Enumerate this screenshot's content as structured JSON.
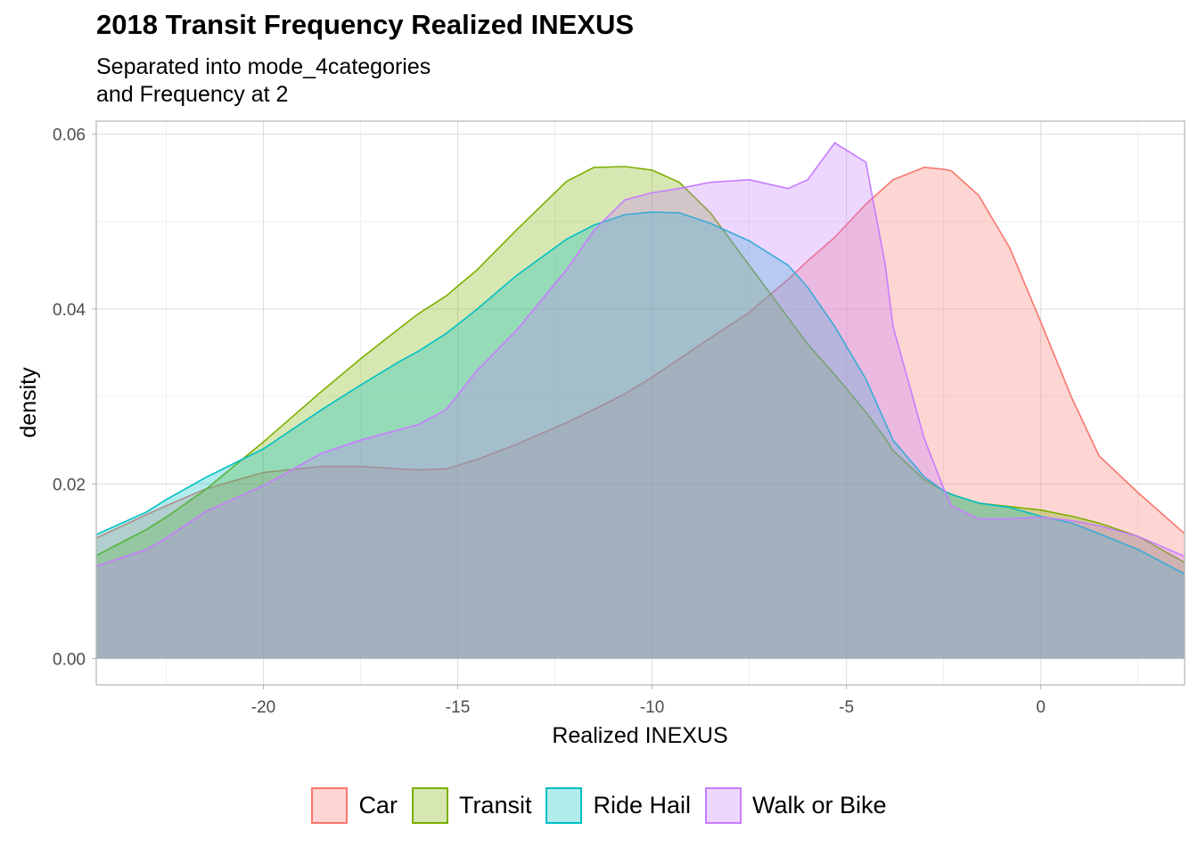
{
  "title": "2018 Transit Frequency Realized INEXUS",
  "subtitle_line1": "Separated into mode_4categories",
  "subtitle_line2": "and Frequency at 2",
  "chart_data": {
    "type": "area",
    "xlabel": "Realized INEXUS",
    "ylabel": "density",
    "xlim": [
      -24.3,
      3.7
    ],
    "ylim": [
      -0.003,
      0.0615
    ],
    "x_ticks": [
      -20,
      -15,
      -10,
      -5,
      0
    ],
    "y_ticks": [
      0.0,
      0.02,
      0.04,
      0.06
    ],
    "grid": true,
    "legend_position": "bottom",
    "x": [
      -24.3,
      -23.0,
      -22.5,
      -21.5,
      -20.0,
      -18.5,
      -17.5,
      -16.5,
      -16.0,
      -15.3,
      -14.5,
      -13.5,
      -12.2,
      -11.5,
      -10.7,
      -10.0,
      -9.3,
      -8.5,
      -7.5,
      -6.5,
      -6.0,
      -5.3,
      -4.5,
      -4.0,
      -3.8,
      -3.0,
      -2.5,
      -2.3,
      -1.6,
      -0.8,
      0.0,
      0.8,
      1.5,
      2.5,
      3.7
    ],
    "series": [
      {
        "name": "Car",
        "line_color": "#F8766D",
        "fill_color": "#F8766D",
        "values": [
          0.0138,
          0.0165,
          0.0175,
          0.0194,
          0.0213,
          0.022,
          0.022,
          0.0217,
          0.0216,
          0.0217,
          0.0228,
          0.0245,
          0.027,
          0.0285,
          0.0303,
          0.0322,
          0.0343,
          0.0367,
          0.0396,
          0.0434,
          0.0455,
          0.0482,
          0.052,
          0.054,
          0.0548,
          0.0562,
          0.056,
          0.0558,
          0.053,
          0.047,
          0.0385,
          0.0298,
          0.0232,
          0.019,
          0.0143
        ]
      },
      {
        "name": "Transit",
        "line_color": "#7CAE00",
        "fill_color": "#7CAE00",
        "values": [
          0.0118,
          0.0148,
          0.0162,
          0.0193,
          0.0248,
          0.0306,
          0.0343,
          0.0378,
          0.0395,
          0.0415,
          0.0445,
          0.049,
          0.0546,
          0.0562,
          0.0563,
          0.0559,
          0.0545,
          0.051,
          0.045,
          0.039,
          0.036,
          0.0325,
          0.0282,
          0.0252,
          0.0238,
          0.0205,
          0.0192,
          0.0188,
          0.0178,
          0.0174,
          0.017,
          0.0163,
          0.0155,
          0.014,
          0.011
        ]
      },
      {
        "name": "Ride Hail",
        "line_color": "#00BFC4",
        "fill_color": "#00BFC4",
        "values": [
          0.0142,
          0.0168,
          0.0182,
          0.0207,
          0.024,
          0.0285,
          0.0313,
          0.034,
          0.0352,
          0.0372,
          0.04,
          0.0438,
          0.048,
          0.0496,
          0.0508,
          0.0511,
          0.051,
          0.0498,
          0.0478,
          0.045,
          0.0425,
          0.038,
          0.032,
          0.027,
          0.025,
          0.0208,
          0.0192,
          0.0188,
          0.0178,
          0.0173,
          0.0163,
          0.0155,
          0.0143,
          0.0125,
          0.0097
        ]
      },
      {
        "name": "Walk or Bike",
        "line_color": "#C77CFF",
        "fill_color": "#C77CFF",
        "values": [
          0.0106,
          0.0125,
          0.0138,
          0.0168,
          0.0198,
          0.0235,
          0.025,
          0.0262,
          0.0268,
          0.0285,
          0.033,
          0.0375,
          0.0445,
          0.049,
          0.0525,
          0.0533,
          0.0538,
          0.0545,
          0.0548,
          0.0538,
          0.0548,
          0.059,
          0.0568,
          0.045,
          0.038,
          0.0252,
          0.0195,
          0.0175,
          0.016,
          0.016,
          0.0162,
          0.0158,
          0.0152,
          0.014,
          0.0117
        ]
      }
    ]
  }
}
